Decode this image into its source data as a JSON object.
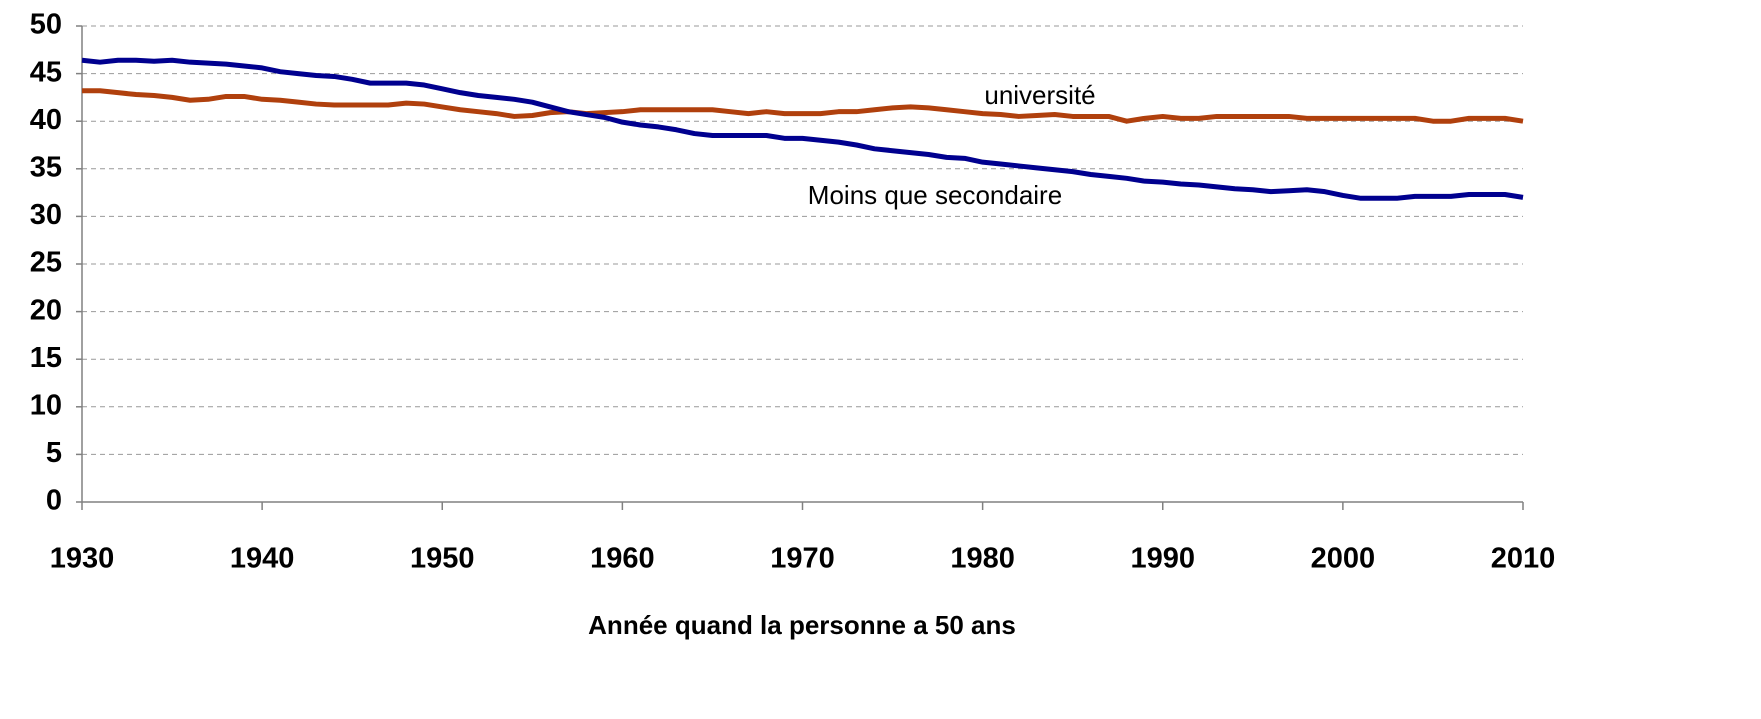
{
  "chart_data": {
    "type": "line",
    "xlabel": "Année quand la personne a 50 ans",
    "x": [
      1930,
      1931,
      1932,
      1933,
      1934,
      1935,
      1936,
      1937,
      1938,
      1939,
      1940,
      1941,
      1942,
      1943,
      1944,
      1945,
      1946,
      1947,
      1948,
      1949,
      1950,
      1951,
      1952,
      1953,
      1954,
      1955,
      1956,
      1957,
      1958,
      1959,
      1960,
      1961,
      1962,
      1963,
      1964,
      1965,
      1966,
      1967,
      1968,
      1969,
      1970,
      1971,
      1972,
      1973,
      1974,
      1975,
      1976,
      1977,
      1978,
      1979,
      1980,
      1981,
      1982,
      1983,
      1984,
      1985,
      1986,
      1987,
      1988,
      1989,
      1990,
      1991,
      1992,
      1993,
      1994,
      1995,
      1996,
      1997,
      1998,
      1999,
      2000,
      2001,
      2002,
      2003,
      2004,
      2005,
      2006,
      2007,
      2008,
      2009,
      2010
    ],
    "series": [
      {
        "name": "université",
        "color": "#b0400d",
        "values": [
          43.2,
          43.2,
          43.0,
          42.8,
          42.7,
          42.5,
          42.2,
          42.3,
          42.6,
          42.6,
          42.3,
          42.2,
          42.0,
          41.8,
          41.7,
          41.7,
          41.7,
          41.7,
          41.9,
          41.8,
          41.5,
          41.2,
          41.0,
          40.8,
          40.5,
          40.6,
          40.9,
          41.0,
          40.8,
          40.9,
          41.0,
          41.2,
          41.2,
          41.2,
          41.2,
          41.2,
          41.0,
          40.8,
          41.0,
          40.8,
          40.8,
          40.8,
          41.0,
          41.0,
          41.2,
          41.4,
          41.5,
          41.4,
          41.2,
          41.0,
          40.8,
          40.7,
          40.5,
          40.6,
          40.7,
          40.5,
          40.5,
          40.5,
          40.0,
          40.3,
          40.5,
          40.3,
          40.3,
          40.5,
          40.5,
          40.5,
          40.5,
          40.5,
          40.3,
          40.3,
          40.3,
          40.3,
          40.3,
          40.3,
          40.3,
          40.0,
          40.0,
          40.3,
          40.3,
          40.3,
          40.0
        ]
      },
      {
        "name": "Moins que secondaire",
        "color": "#00008f",
        "values": [
          46.4,
          46.2,
          46.4,
          46.4,
          46.3,
          46.4,
          46.2,
          46.1,
          46.0,
          45.8,
          45.6,
          45.2,
          45.0,
          44.8,
          44.7,
          44.4,
          44.0,
          44.0,
          44.0,
          43.8,
          43.4,
          43.0,
          42.7,
          42.5,
          42.3,
          42.0,
          41.5,
          41.0,
          40.7,
          40.4,
          39.9,
          39.6,
          39.4,
          39.1,
          38.7,
          38.5,
          38.5,
          38.5,
          38.5,
          38.2,
          38.2,
          38.0,
          37.8,
          37.5,
          37.1,
          36.9,
          36.7,
          36.5,
          36.2,
          36.1,
          35.7,
          35.5,
          35.3,
          35.1,
          34.9,
          34.7,
          34.4,
          34.2,
          34.0,
          33.7,
          33.6,
          33.4,
          33.3,
          33.1,
          32.9,
          32.8,
          32.6,
          32.7,
          32.8,
          32.6,
          32.2,
          31.9,
          31.9,
          31.9,
          32.1,
          32.1,
          32.1,
          32.3,
          32.3,
          32.3,
          32.0
        ]
      }
    ],
    "xlim": [
      1930,
      2010
    ],
    "xticks": [
      1930,
      1940,
      1950,
      1960,
      1970,
      1980,
      1990,
      2000,
      2010
    ],
    "ylim": [
      0,
      50
    ],
    "yticks": [
      0,
      5,
      10,
      15,
      20,
      25,
      30,
      35,
      40,
      45,
      50
    ],
    "grid": true
  }
}
